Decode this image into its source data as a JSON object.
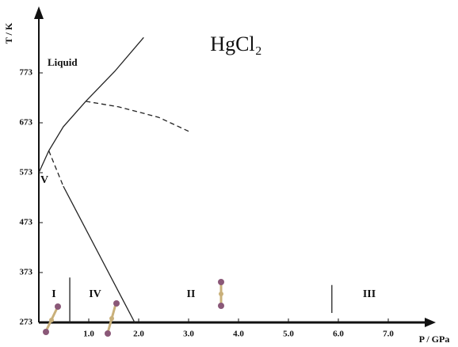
{
  "chart_data": {
    "type": "line",
    "title": "HgCl₂",
    "xlabel": "P / GPa",
    "ylabel": "T / K",
    "xlim": [
      0,
      7.9
    ],
    "ylim": [
      273,
      903
    ],
    "xticks": [
      {
        "value": 1,
        "label": "1.0"
      },
      {
        "value": 2,
        "label": "2.0"
      },
      {
        "value": 3,
        "label": "3.0"
      },
      {
        "value": 4,
        "label": "4.0"
      },
      {
        "value": 5,
        "label": "5.0"
      },
      {
        "value": 6,
        "label": "6.0"
      },
      {
        "value": 7,
        "label": "7.0"
      }
    ],
    "yticks": [
      273,
      373,
      473,
      573,
      673,
      773
    ],
    "series": [
      {
        "color": "#222222",
        "style": "solid",
        "x": [
          0,
          0.2,
          0.49,
          0.94,
          1.52,
          2.1
        ],
        "values": [
          573,
          617,
          665,
          716,
          776,
          844
        ]
      },
      {
        "color": "#222222",
        "style": "dashed",
        "x": [
          0.94,
          1.6,
          2.4,
          3.0
        ],
        "values": [
          716,
          705,
          684,
          656
        ]
      },
      {
        "color": "#222222",
        "style": "dashed",
        "x": [
          0.2,
          0.49
        ],
        "values": [
          617,
          546
        ]
      },
      {
        "color": "#222222",
        "style": "solid",
        "x": [
          0.49,
          1.92
        ],
        "values": [
          546,
          273
        ]
      },
      {
        "color": "#222222",
        "style": "solid",
        "x": [
          0.62,
          0.62
        ],
        "values": [
          273,
          363
        ]
      },
      {
        "color": "#222222",
        "style": "solid",
        "x": [
          5.87,
          5.87
        ],
        "values": [
          292,
          348
        ]
      }
    ],
    "annotations": [
      "Liquid",
      "V",
      "I",
      "IV",
      "II",
      "III"
    ]
  }
}
